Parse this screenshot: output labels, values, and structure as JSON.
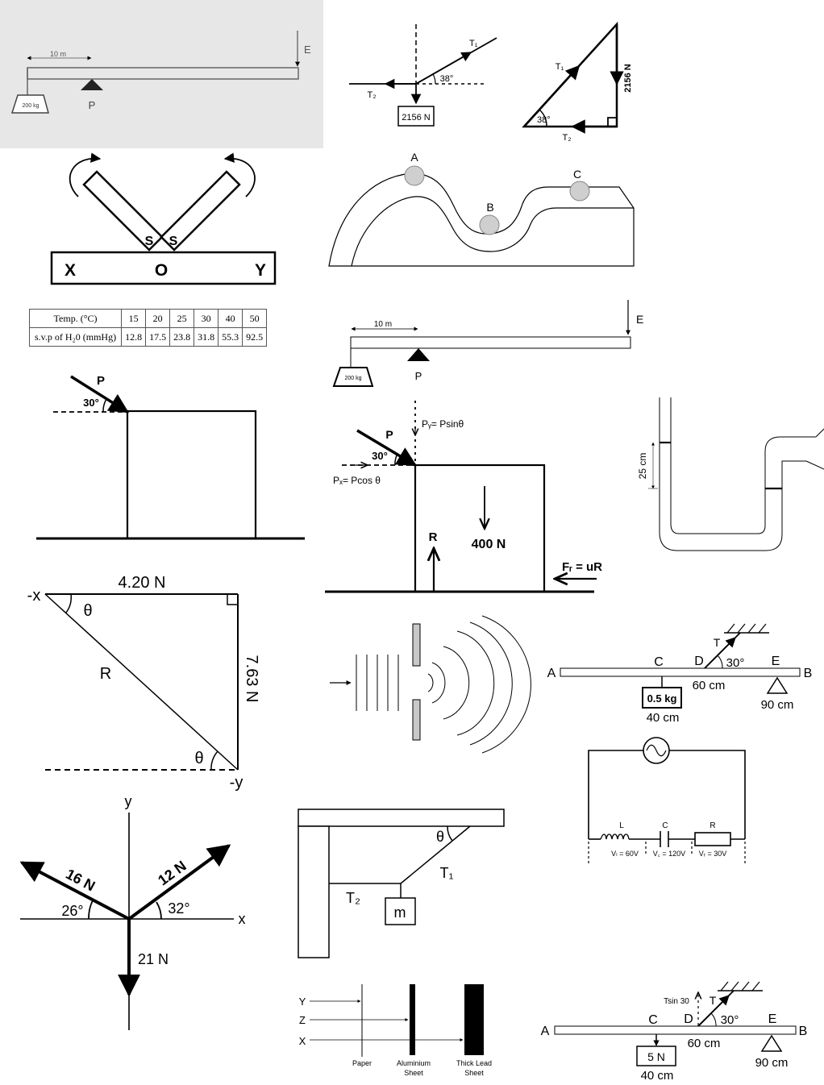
{
  "beam_photo": {
    "length_label": "10 m",
    "load_label": "200 kg",
    "pivot_label": "P",
    "force_label": "E"
  },
  "force_junction": {
    "t1": "T₁",
    "t2": "T₂",
    "angle": "38°",
    "weight": "2156 N"
  },
  "force_triangle": {
    "t1": "T₁",
    "t2": "T₂",
    "angle": "38°",
    "side": "2156 N"
  },
  "magnet_pivot": {
    "x": "X",
    "o": "O",
    "y": "Y",
    "s_left": "S",
    "s_right": "S"
  },
  "roller_track": {
    "a": "A",
    "b": "B",
    "c": "C"
  },
  "svp_table": {
    "row1_label": "Temp. (°C)",
    "row2_label": "s.v.p of H₂0 (mmHg)",
    "temps": [
      "15",
      "20",
      "25",
      "30",
      "40",
      "50"
    ],
    "svp": [
      "12.8",
      "17.5",
      "23.8",
      "31.8",
      "55.3",
      "92.5"
    ]
  },
  "beam_drawing": {
    "length_label": "10 m",
    "load_label": "200 kg",
    "pivot_label": "P",
    "force_label": "E"
  },
  "push_block": {
    "force": "P",
    "angle": "30°"
  },
  "block_forces": {
    "p": "P",
    "angle": "30°",
    "py": "Pᵧ= Psinθ",
    "px": "Pₓ= Pcos θ",
    "weight": "400 N",
    "reaction": "R",
    "friction": "Fᵣ = uR"
  },
  "u_tube": {
    "height": "25 cm"
  },
  "right_triangle": {
    "top": "4.20 N",
    "side": "7.63 N",
    "hyp": "R",
    "theta": "θ",
    "x_label": "-x",
    "y_label": "-y"
  },
  "lever_1": {
    "a": "A",
    "b": "B",
    "c": "C",
    "d": "D",
    "e": "E",
    "t": "T",
    "angle": "30°",
    "mass": "0.5 kg",
    "cm40": "40 cm",
    "cm60": "60 cm",
    "cm90": "90 cm"
  },
  "lcr_circuit": {
    "l": "L",
    "c": "C",
    "r": "R",
    "vl": "Vₗ = 60V",
    "vc": "V꜀ = 120V",
    "vr": "Vᵣ = 30V"
  },
  "vector_diagram": {
    "y": "y",
    "x": "x",
    "f16": "16 N",
    "f12": "12 N",
    "a26": "26°",
    "a32": "32°",
    "f21": "21 N"
  },
  "bracket": {
    "theta": "θ",
    "t1": "T₁",
    "t2": "T₂",
    "m": "m"
  },
  "radiation": {
    "y": "Y",
    "z": "Z",
    "x": "X",
    "paper": "Paper",
    "al1": "Aluminium",
    "al2": "Sheet",
    "pb1": "Thick Lead",
    "pb2": "Sheet"
  },
  "lever_2": {
    "a": "A",
    "b": "B",
    "c": "C",
    "d": "D",
    "e": "E",
    "t": "T",
    "tsin": "Tsin 30",
    "angle": "30°",
    "weight": "5 N",
    "cm40": "40 cm",
    "cm60": "60 cm",
    "cm90": "90 cm"
  }
}
